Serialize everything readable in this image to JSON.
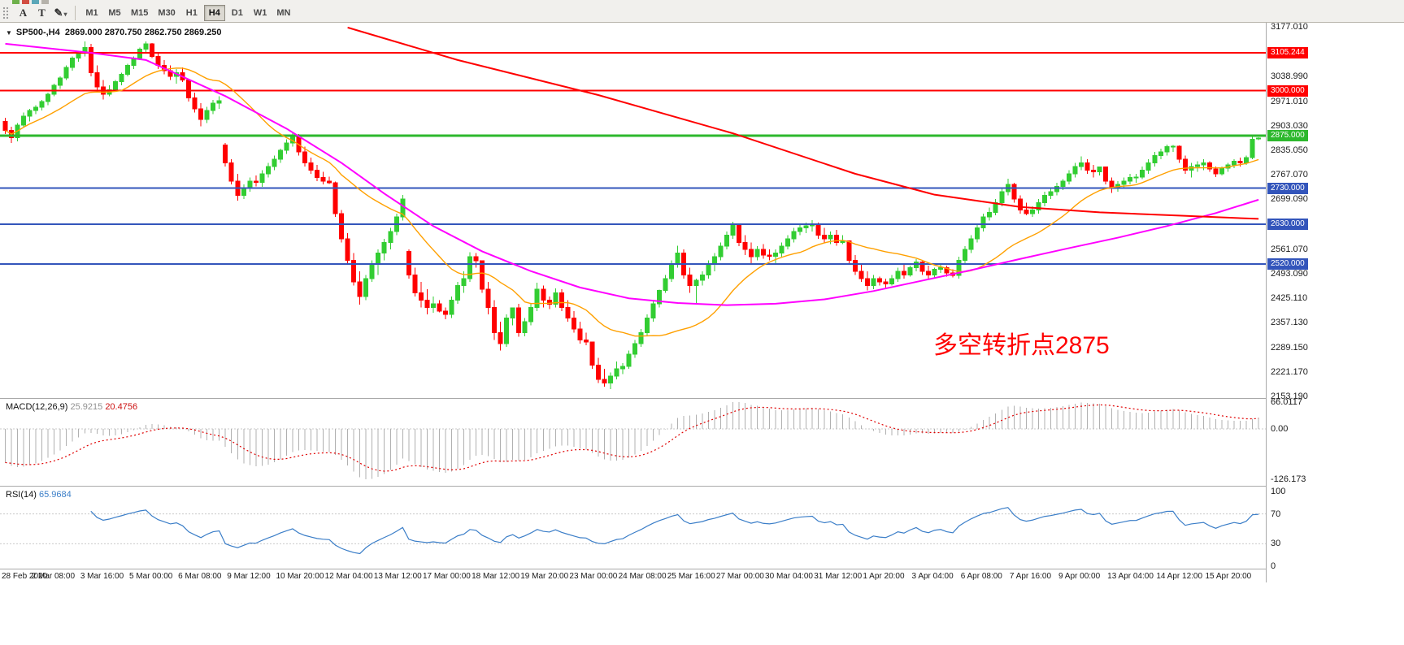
{
  "toolbar": {
    "tool_buttons": [
      {
        "label": "A"
      },
      {
        "label": "T"
      },
      {
        "label": "✎",
        "dropdown": "▾"
      }
    ],
    "timeframes": [
      "M1",
      "M5",
      "M15",
      "M30",
      "H1",
      "H4",
      "D1",
      "W1",
      "MN"
    ],
    "active_timeframe": "H4"
  },
  "chart": {
    "symbol_title": "SP500-,H4",
    "ohlc_text": "2869.000 2870.750 2862.750 2869.250",
    "annotation": "多空转折点2875",
    "y_ticks": [
      "3177.010",
      "3038.990",
      "2971.010",
      "2903.030",
      "2835.050",
      "2767.070",
      "2699.090",
      "2561.070",
      "2493.090",
      "2425.110",
      "2357.130",
      "2289.150",
      "2221.170",
      "2153.190"
    ],
    "x_labels": [
      "28 Feb 2020",
      "2 Mar 08:00",
      "3 Mar 16:00",
      "5 Mar 00:00",
      "6 Mar 08:00",
      "9 Mar 12:00",
      "10 Mar 20:00",
      "12 Mar 04:00",
      "13 Mar 12:00",
      "17 Mar 00:00",
      "18 Mar 12:00",
      "19 Mar 20:00",
      "23 Mar 00:00",
      "24 Mar 08:00",
      "25 Mar 16:00",
      "27 Mar 00:00",
      "30 Mar 04:00",
      "31 Mar 12:00",
      "1 Apr 20:00",
      "3 Apr 04:00",
      "6 Apr 08:00",
      "7 Apr 16:00",
      "9 Apr 00:00",
      "13 Apr 04:00",
      "14 Apr 12:00",
      "15 Apr 20:00"
    ]
  },
  "macd": {
    "label": "MACD(12,26,9)",
    "value_main": "25.9215",
    "value_signal": "20.4756",
    "axis_labels": [
      "66.0117",
      "0.00",
      "-126.173"
    ]
  },
  "rsi": {
    "label": "RSI(14)",
    "value": "65.9684",
    "axis_labels": [
      "100",
      "70",
      "30",
      "0"
    ],
    "levels": [
      70,
      30
    ]
  },
  "chart_data": {
    "type": "candlestick",
    "symbol": "SP500-",
    "timeframe": "H4",
    "title": "SP500-,H4 2869.000 2870.750 2862.750 2869.250",
    "y_range": [
      2153.19,
      3177.01
    ],
    "bars_per_x_label": 8,
    "colors": {
      "up": "#32cd32",
      "down": "#ff0000",
      "ma_fast": "#ffa000",
      "ma_medium": "#ff00ff",
      "ma_slow": "#ff0000",
      "macd_hist": "#b0b0b0",
      "macd_signal": "#e00000",
      "rsi": "#3b7ec8",
      "level_red": "#ff0000",
      "level_green": "#2db82d",
      "level_blue": "#3355bb"
    },
    "levels": [
      {
        "price": 3105.244,
        "label": "3105.244",
        "color": "#ff0000",
        "width": 2
      },
      {
        "price": 3000.0,
        "label": "3000.000",
        "color": "#ff0000",
        "width": 2
      },
      {
        "price": 2875.0,
        "label": "2875.000",
        "color": "#2db82d",
        "width": 3
      },
      {
        "price": 2730.0,
        "label": "2730.000",
        "color": "#3355bb",
        "width": 2
      },
      {
        "price": 2630.0,
        "label": "2630.000",
        "color": "#3355bb",
        "width": 2
      },
      {
        "price": 2520.0,
        "label": "2520.000",
        "color": "#3355bb",
        "width": 2
      }
    ],
    "ma_fast_period": 20,
    "macd_seed": [
      3060,
      3125
    ],
    "ma_medium_points": [
      [
        0,
        3130
      ],
      [
        14,
        3105
      ],
      [
        23,
        3085
      ],
      [
        36,
        2985
      ],
      [
        46,
        2895
      ],
      [
        55,
        2800
      ],
      [
        62,
        2715
      ],
      [
        70,
        2625
      ],
      [
        78,
        2555
      ],
      [
        86,
        2500
      ],
      [
        94,
        2455
      ],
      [
        102,
        2425
      ],
      [
        110,
        2412
      ],
      [
        118,
        2406
      ],
      [
        126,
        2410
      ],
      [
        134,
        2422
      ],
      [
        142,
        2445
      ],
      [
        150,
        2474
      ],
      [
        158,
        2503
      ],
      [
        166,
        2534
      ],
      [
        174,
        2564
      ],
      [
        182,
        2593
      ],
      [
        190,
        2625
      ],
      [
        198,
        2661
      ],
      [
        205,
        2698
      ]
    ],
    "ma_slow_points": [
      [
        56,
        3175
      ],
      [
        74,
        3085
      ],
      [
        97,
        2988
      ],
      [
        119,
        2882
      ],
      [
        139,
        2770
      ],
      [
        152,
        2712
      ],
      [
        166,
        2678
      ],
      [
        179,
        2663
      ],
      [
        192,
        2654
      ],
      [
        205,
        2645
      ]
    ],
    "candles": [
      [
        2915,
        2925,
        2880,
        2890
      ],
      [
        2890,
        2900,
        2855,
        2870
      ],
      [
        2870,
        2910,
        2860,
        2905
      ],
      [
        2905,
        2940,
        2900,
        2930
      ],
      [
        2930,
        2950,
        2915,
        2945
      ],
      [
        2945,
        2960,
        2935,
        2954
      ],
      [
        2954,
        2975,
        2945,
        2970
      ],
      [
        2970,
        2995,
        2960,
        2990
      ],
      [
        2990,
        3020,
        2985,
        3015
      ],
      [
        3015,
        3040,
        3005,
        3035
      ],
      [
        3035,
        3070,
        3030,
        3065
      ],
      [
        3065,
        3095,
        3055,
        3090
      ],
      [
        3090,
        3110,
        3080,
        3105
      ],
      [
        3105,
        3136,
        3095,
        3120
      ],
      [
        3120,
        3130,
        3040,
        3050
      ],
      [
        3050,
        3070,
        2995,
        3010
      ],
      [
        3010,
        3030,
        2976,
        2990
      ],
      [
        2990,
        3015,
        2985,
        3003
      ],
      [
        3003,
        3030,
        3000,
        3025
      ],
      [
        3025,
        3050,
        3015,
        3045
      ],
      [
        3045,
        3075,
        3040,
        3070
      ],
      [
        3070,
        3095,
        3060,
        3090
      ],
      [
        3090,
        3120,
        3085,
        3115
      ],
      [
        3115,
        3137,
        3105,
        3130
      ],
      [
        3130,
        3132,
        3090,
        3095
      ],
      [
        3095,
        3105,
        3060,
        3070
      ],
      [
        3070,
        3085,
        3045,
        3055
      ],
      [
        3055,
        3070,
        3030,
        3040
      ],
      [
        3040,
        3060,
        3020,
        3050
      ],
      [
        3050,
        3065,
        3024,
        3030
      ],
      [
        3030,
        3032,
        2970,
        2980
      ],
      [
        2980,
        2995,
        2940,
        2950
      ],
      [
        2950,
        2965,
        2901,
        2920
      ],
      [
        2920,
        2955,
        2910,
        2945
      ],
      [
        2945,
        2975,
        2935,
        2965
      ],
      [
        2965,
        2985,
        2950,
        2972
      ],
      [
        2850,
        2855,
        2790,
        2800
      ],
      [
        2800,
        2810,
        2740,
        2750
      ],
      [
        2750,
        2770,
        2695,
        2710
      ],
      [
        2710,
        2740,
        2700,
        2730
      ],
      [
        2730,
        2760,
        2720,
        2750
      ],
      [
        2750,
        2765,
        2735,
        2746
      ],
      [
        2746,
        2780,
        2734,
        2770
      ],
      [
        2770,
        2800,
        2760,
        2790
      ],
      [
        2790,
        2820,
        2780,
        2810
      ],
      [
        2810,
        2840,
        2800,
        2835
      ],
      [
        2835,
        2865,
        2825,
        2855
      ],
      [
        2855,
        2882,
        2845,
        2875
      ],
      [
        2875,
        2880,
        2820,
        2830
      ],
      [
        2830,
        2845,
        2790,
        2800
      ],
      [
        2800,
        2815,
        2770,
        2780
      ],
      [
        2780,
        2795,
        2750,
        2760
      ],
      [
        2760,
        2775,
        2741,
        2750
      ],
      [
        2750,
        2762,
        2742,
        2745
      ],
      [
        2745,
        2748,
        2650,
        2660
      ],
      [
        2660,
        2670,
        2580,
        2590
      ],
      [
        2590,
        2605,
        2520,
        2530
      ],
      [
        2530,
        2550,
        2460,
        2470
      ],
      [
        2470,
        2500,
        2407,
        2430
      ],
      [
        2430,
        2490,
        2420,
        2480
      ],
      [
        2480,
        2530,
        2470,
        2520
      ],
      [
        2520,
        2560,
        2490,
        2550
      ],
      [
        2550,
        2590,
        2530,
        2580
      ],
      [
        2580,
        2620,
        2560,
        2610
      ],
      [
        2610,
        2660,
        2600,
        2650
      ],
      [
        2650,
        2711,
        2640,
        2700
      ],
      [
        2555,
        2560,
        2480,
        2490
      ],
      [
        2490,
        2510,
        2430,
        2440
      ],
      [
        2440,
        2470,
        2400,
        2420
      ],
      [
        2420,
        2450,
        2380,
        2400
      ],
      [
        2400,
        2430,
        2385,
        2410
      ],
      [
        2410,
        2420,
        2386,
        2390
      ],
      [
        2390,
        2400,
        2367,
        2380
      ],
      [
        2380,
        2430,
        2370,
        2420
      ],
      [
        2420,
        2470,
        2410,
        2460
      ],
      [
        2460,
        2500,
        2440,
        2480
      ],
      [
        2480,
        2553,
        2470,
        2540
      ],
      [
        2540,
        2550,
        2510,
        2529
      ],
      [
        2529,
        2530,
        2440,
        2450
      ],
      [
        2450,
        2470,
        2380,
        2400
      ],
      [
        2400,
        2420,
        2310,
        2330
      ],
      [
        2330,
        2360,
        2280,
        2300
      ],
      [
        2300,
        2380,
        2290,
        2370
      ],
      [
        2370,
        2400,
        2350,
        2398
      ],
      [
        2398,
        2410,
        2319,
        2330
      ],
      [
        2330,
        2370,
        2320,
        2360
      ],
      [
        2360,
        2410,
        2350,
        2400
      ],
      [
        2400,
        2468,
        2390,
        2450
      ],
      [
        2450,
        2460,
        2400,
        2420
      ],
      [
        2420,
        2430,
        2395,
        2409
      ],
      [
        2409,
        2453,
        2400,
        2440
      ],
      [
        2440,
        2450,
        2390,
        2400
      ],
      [
        2400,
        2420,
        2360,
        2370
      ],
      [
        2370,
        2390,
        2330,
        2340
      ],
      [
        2340,
        2360,
        2300,
        2310
      ],
      [
        2310,
        2330,
        2295,
        2304
      ],
      [
        2304,
        2305,
        2230,
        2240
      ],
      [
        2240,
        2260,
        2190,
        2200
      ],
      [
        2200,
        2230,
        2180,
        2190
      ],
      [
        2190,
        2220,
        2174,
        2210
      ],
      [
        2210,
        2250,
        2200,
        2230
      ],
      [
        2230,
        2245,
        2215,
        2237
      ],
      [
        2237,
        2280,
        2230,
        2270
      ],
      [
        2270,
        2310,
        2260,
        2300
      ],
      [
        2300,
        2340,
        2290,
        2330
      ],
      [
        2330,
        2380,
        2320,
        2370
      ],
      [
        2370,
        2420,
        2360,
        2410
      ],
      [
        2410,
        2449,
        2400,
        2447
      ],
      [
        2447,
        2490,
        2440,
        2480
      ],
      [
        2480,
        2530,
        2470,
        2520
      ],
      [
        2520,
        2571,
        2510,
        2550
      ],
      [
        2550,
        2560,
        2480,
        2490
      ],
      [
        2490,
        2510,
        2440,
        2460
      ],
      [
        2460,
        2480,
        2407,
        2475
      ],
      [
        2475,
        2500,
        2460,
        2490
      ],
      [
        2490,
        2530,
        2480,
        2520
      ],
      [
        2520,
        2550,
        2500,
        2540
      ],
      [
        2540,
        2580,
        2530,
        2570
      ],
      [
        2570,
        2610,
        2560,
        2600
      ],
      [
        2600,
        2637,
        2590,
        2630
      ],
      [
        2630,
        2632,
        2570,
        2580
      ],
      [
        2580,
        2600,
        2545,
        2560
      ],
      [
        2560,
        2580,
        2520,
        2540
      ],
      [
        2540,
        2570,
        2530,
        2560
      ],
      [
        2560,
        2575,
        2535,
        2545
      ],
      [
        2545,
        2560,
        2530,
        2541
      ],
      [
        2541,
        2560,
        2522,
        2550
      ],
      [
        2550,
        2580,
        2540,
        2570
      ],
      [
        2570,
        2600,
        2560,
        2590
      ],
      [
        2590,
        2620,
        2580,
        2610
      ],
      [
        2610,
        2631,
        2600,
        2620
      ],
      [
        2620,
        2635,
        2605,
        2626
      ],
      [
        2626,
        2641,
        2610,
        2630
      ],
      [
        2630,
        2635,
        2590,
        2600
      ],
      [
        2600,
        2620,
        2580,
        2590
      ],
      [
        2590,
        2610,
        2575,
        2600
      ],
      [
        2600,
        2615,
        2571,
        2580
      ],
      [
        2580,
        2600,
        2575,
        2584
      ],
      [
        2584,
        2585,
        2520,
        2530
      ],
      [
        2530,
        2545,
        2490,
        2500
      ],
      [
        2500,
        2520,
        2470,
        2480
      ],
      [
        2480,
        2500,
        2447,
        2460
      ],
      [
        2460,
        2490,
        2450,
        2480
      ],
      [
        2480,
        2485,
        2460,
        2470
      ],
      [
        2470,
        2480,
        2455,
        2465
      ],
      [
        2465,
        2490,
        2460,
        2480
      ],
      [
        2480,
        2510,
        2470,
        2500
      ],
      [
        2500,
        2520,
        2480,
        2490
      ],
      [
        2490,
        2515,
        2485,
        2510
      ],
      [
        2510,
        2533,
        2500,
        2526
      ],
      [
        2526,
        2528,
        2490,
        2500
      ],
      [
        2500,
        2515,
        2480,
        2490
      ],
      [
        2490,
        2510,
        2482,
        2505
      ],
      [
        2505,
        2520,
        2495,
        2510
      ],
      [
        2510,
        2515,
        2485,
        2495
      ],
      [
        2495,
        2505,
        2483,
        2488
      ],
      [
        2488,
        2540,
        2480,
        2530
      ],
      [
        2530,
        2570,
        2520,
        2560
      ],
      [
        2560,
        2600,
        2550,
        2590
      ],
      [
        2590,
        2630,
        2580,
        2620
      ],
      [
        2620,
        2660,
        2610,
        2650
      ],
      [
        2650,
        2676,
        2640,
        2663
      ],
      [
        2663,
        2700,
        2655,
        2690
      ],
      [
        2690,
        2730,
        2680,
        2720
      ],
      [
        2720,
        2756,
        2710,
        2740
      ],
      [
        2740,
        2745,
        2690,
        2700
      ],
      [
        2700,
        2710,
        2660,
        2670
      ],
      [
        2670,
        2690,
        2655,
        2659
      ],
      [
        2659,
        2680,
        2650,
        2670
      ],
      [
        2670,
        2700,
        2660,
        2690
      ],
      [
        2690,
        2720,
        2680,
        2710
      ],
      [
        2710,
        2730,
        2700,
        2720
      ],
      [
        2720,
        2745,
        2710,
        2735
      ],
      [
        2735,
        2755,
        2725,
        2749
      ],
      [
        2749,
        2780,
        2740,
        2770
      ],
      [
        2770,
        2800,
        2760,
        2790
      ],
      [
        2790,
        2818,
        2780,
        2800
      ],
      [
        2800,
        2810,
        2770,
        2780
      ],
      [
        2780,
        2795,
        2760,
        2775
      ],
      [
        2775,
        2790,
        2765,
        2789
      ],
      [
        2789,
        2790,
        2740,
        2750
      ],
      [
        2750,
        2760,
        2717,
        2730
      ],
      [
        2730,
        2750,
        2720,
        2740
      ],
      [
        2740,
        2760,
        2730,
        2750
      ],
      [
        2750,
        2770,
        2740,
        2760
      ],
      [
        2760,
        2770,
        2745,
        2761
      ],
      [
        2761,
        2790,
        2755,
        2780
      ],
      [
        2780,
        2810,
        2770,
        2800
      ],
      [
        2800,
        2830,
        2790,
        2820
      ],
      [
        2820,
        2840,
        2810,
        2830
      ],
      [
        2830,
        2851,
        2820,
        2845
      ],
      [
        2845,
        2850,
        2830,
        2846
      ],
      [
        2846,
        2848,
        2800,
        2810
      ],
      [
        2810,
        2820,
        2770,
        2780
      ],
      [
        2780,
        2800,
        2760,
        2790
      ],
      [
        2790,
        2805,
        2775,
        2795
      ],
      [
        2795,
        2810,
        2780,
        2800
      ],
      [
        2800,
        2805,
        2775,
        2783
      ],
      [
        2783,
        2790,
        2761,
        2770
      ],
      [
        2770,
        2790,
        2765,
        2785
      ],
      [
        2785,
        2800,
        2775,
        2795
      ],
      [
        2795,
        2810,
        2785,
        2805
      ],
      [
        2805,
        2815,
        2790,
        2800
      ],
      [
        2800,
        2820,
        2795,
        2815
      ],
      [
        2815,
        2875,
        2810,
        2865
      ],
      [
        2869,
        2870.75,
        2862.75,
        2869.25
      ]
    ]
  }
}
